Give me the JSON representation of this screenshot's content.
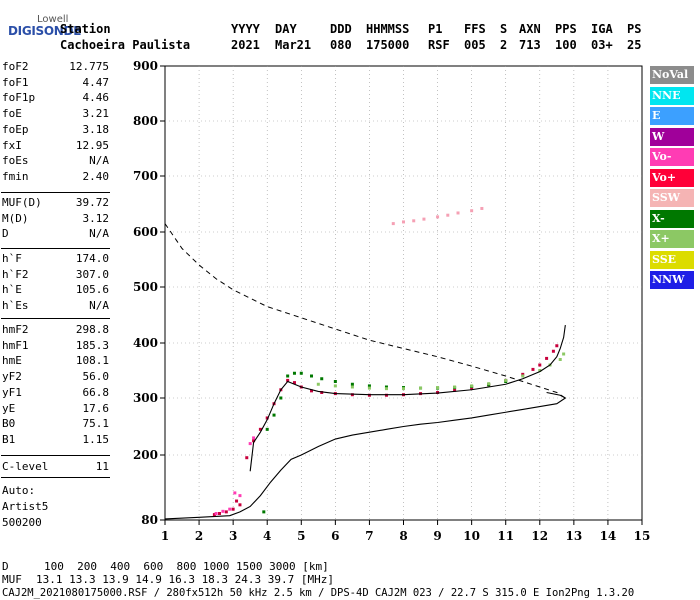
{
  "logo": {
    "top": "Lowell",
    "bottom": "DIGISONDE"
  },
  "header": {
    "row1": [
      "Station",
      "YYYY",
      "DAY",
      "DDD",
      "HHMMSS",
      "P1",
      "FFS",
      "S",
      "AXN",
      "PPS",
      "IGA",
      "PS"
    ],
    "row2": [
      "Cachoeira Paulista",
      "2021",
      "Mar21",
      "080",
      "175000",
      "RSF",
      "005",
      "2",
      "713",
      "100",
      "03+",
      "25"
    ]
  },
  "params_group1": [
    {
      "label": "foF2",
      "value": "12.775"
    },
    {
      "label": "foF1",
      "value": "4.47"
    },
    {
      "label": "foF1p",
      "value": "4.46"
    },
    {
      "label": "foE",
      "value": "3.21"
    },
    {
      "label": "foEp",
      "value": "3.18"
    },
    {
      "label": "fxI",
      "value": "12.95"
    },
    {
      "label": "foEs",
      "value": "N/A"
    },
    {
      "label": "fmin",
      "value": "2.40"
    }
  ],
  "params_group2": [
    {
      "label": "MUF(D)",
      "value": "39.72"
    },
    {
      "label": "M(D)",
      "value": "3.12"
    },
    {
      "label": "D",
      "value": "N/A"
    }
  ],
  "params_group3": [
    {
      "label": "h`F",
      "value": "174.0"
    },
    {
      "label": "h`F2",
      "value": "307.0"
    },
    {
      "label": "h`E",
      "value": "105.6"
    },
    {
      "label": "h`Es",
      "value": "N/A"
    }
  ],
  "params_group4": [
    {
      "label": "hmF2",
      "value": "298.8"
    },
    {
      "label": "hmF1",
      "value": "185.3"
    },
    {
      "label": "hmE",
      "value": "108.1"
    },
    {
      "label": "yF2",
      "value": "56.0"
    },
    {
      "label": "yF1",
      "value": "66.8"
    },
    {
      "label": "yE",
      "value": "17.6"
    },
    {
      "label": "B0",
      "value": "75.1"
    },
    {
      "label": "B1",
      "value": "1.15"
    }
  ],
  "params_group5": [
    {
      "label": "C-level",
      "value": "11"
    }
  ],
  "autoscale": {
    "line1": "Auto:",
    "line2": "Artist5",
    "line3": "500200"
  },
  "footer": {
    "d_label": "D",
    "d_values": "100  200  400  600  800 1000 1500 3000 [km]",
    "muf_label": "MUF",
    "muf_values": "13.1 13.3 13.9 14.9 16.3 18.3 24.3 39.7 [MHz]",
    "file_line": "CAJ2M_2021080175000.RSF / 280fx512h 50 kHz 2.5 km / DPS-4D CAJ2M 023 / 22.7 S 315.0 E Ion2Png 1.3.20"
  },
  "legend": [
    {
      "label": "NoVal",
      "color": "#8c8c8c"
    },
    {
      "label": "NNE",
      "color": "#00e6f0"
    },
    {
      "label": "E",
      "color": "#3ca0ff"
    },
    {
      "label": "W",
      "color": "#a0009a"
    },
    {
      "label": "Vo-",
      "color": "#ff3cb4"
    },
    {
      "label": "Vo+",
      "color": "#ff0038"
    },
    {
      "label": "SSW",
      "color": "#f5b4b4"
    },
    {
      "label": "X-",
      "color": "#007800"
    },
    {
      "label": "X+",
      "color": "#8cc864"
    },
    {
      "label": "SSE",
      "color": "#dcdc00"
    },
    {
      "label": "NNW",
      "color": "#1e1ee6"
    }
  ],
  "chart_data": {
    "type": "scatter",
    "xlim": [
      1,
      15
    ],
    "ylim": [
      80,
      900
    ],
    "x_ticks": [
      1,
      2,
      3,
      4,
      5,
      6,
      7,
      8,
      9,
      10,
      11,
      12,
      13,
      14,
      15
    ],
    "y_ticks": [
      80,
      200,
      300,
      400,
      500,
      600,
      700,
      800,
      900
    ],
    "grid": true,
    "series": [
      {
        "name": "Vo+",
        "color": "#c8003c",
        "x": [
          2.45,
          2.6,
          2.8,
          3.0,
          3.1,
          3.2,
          3.4,
          3.6,
          3.8,
          4.0,
          4.2,
          4.4,
          4.6,
          4.8,
          5.0,
          5.3,
          5.6,
          6.0,
          6.5,
          7.0,
          7.5,
          8.0,
          8.5,
          9.0,
          9.5,
          10.0,
          10.5,
          11.0,
          11.5,
          11.8,
          12.0,
          12.2,
          12.4,
          12.5
        ],
        "y": [
          90,
          92,
          95,
          100,
          115,
          108,
          195,
          225,
          245,
          265,
          290,
          315,
          332,
          328,
          320,
          313,
          310,
          308,
          306,
          305,
          305,
          306,
          308,
          310,
          314,
          318,
          324,
          332,
          343,
          352,
          360,
          372,
          385,
          395
        ]
      },
      {
        "name": "Vo-",
        "color": "#ff3cb4",
        "x": [
          2.5,
          2.7,
          2.9,
          3.05,
          3.2,
          3.5,
          3.6
        ],
        "y": [
          92,
          96,
          100,
          130,
          125,
          220,
          230
        ]
      },
      {
        "name": "X-",
        "color": "#007800",
        "x": [
          3.9,
          4.0,
          4.2,
          4.4,
          4.6,
          4.8,
          5.0,
          5.3,
          5.6,
          6.0,
          6.5,
          7.0,
          7.5,
          8.0,
          8.5,
          9.0,
          9.5,
          10.0,
          10.5,
          11.0
        ],
        "y": [
          95,
          245,
          270,
          300,
          340,
          345,
          345,
          340,
          335,
          330,
          325,
          322,
          320,
          319,
          318,
          318,
          319,
          321,
          324,
          330
        ]
      },
      {
        "name": "X+",
        "color": "#8cc864",
        "x": [
          5.5,
          6.0,
          6.5,
          7.0,
          7.5,
          8.0,
          8.5,
          9.0,
          9.5,
          10.0,
          10.5,
          11.0,
          11.5,
          12.0,
          12.3,
          12.6,
          12.7
        ],
        "y": [
          325,
          322,
          320,
          318,
          317,
          317,
          318,
          319,
          320,
          322,
          326,
          332,
          340,
          350,
          360,
          370,
          380
        ]
      },
      {
        "name": "SSW",
        "color": "#f5a0b4",
        "x": [
          7.7,
          8.0,
          8.3,
          8.6,
          9.0,
          9.3,
          9.6,
          10.0,
          10.3
        ],
        "y": [
          615,
          618,
          620,
          623,
          627,
          630,
          634,
          638,
          642
        ]
      }
    ],
    "profile": {
      "name": "electron density profile",
      "x": [
        1.0,
        2.0,
        2.9,
        3.2,
        3.5,
        3.8,
        4.1,
        4.4,
        4.7,
        5.0,
        5.5,
        6.0,
        6.5,
        7.0,
        7.5,
        8.0,
        8.5,
        9.0,
        9.5,
        10.0,
        10.5,
        11.0,
        11.5,
        12.0,
        12.5,
        12.75,
        12.6,
        12.2
      ],
      "y": [
        82,
        85,
        88,
        95,
        105,
        125,
        150,
        172,
        192,
        200,
        215,
        228,
        235,
        240,
        245,
        250,
        254,
        257,
        261,
        265,
        270,
        275,
        280,
        285,
        290,
        300,
        305,
        310
      ]
    },
    "virtual_trace": {
      "name": "black trace",
      "x": [
        3.5,
        3.6,
        3.8,
        4.0,
        4.2,
        4.4,
        4.6,
        4.8,
        5.0,
        5.5,
        6.0,
        7.0,
        8.0,
        9.0,
        10.0,
        11.0,
        11.5,
        12.0,
        12.3,
        12.5,
        12.6,
        12.7,
        12.75
      ],
      "y": [
        170,
        222,
        240,
        262,
        290,
        315,
        330,
        325,
        320,
        312,
        308,
        306,
        306,
        309,
        315,
        325,
        335,
        348,
        360,
        375,
        390,
        410,
        432
      ]
    },
    "dashed_curve": {
      "x": [
        1.0,
        1.5,
        2.0,
        2.5,
        3.0,
        4.0,
        5.0,
        6.0,
        7.0,
        8.0,
        9.0,
        10.0,
        11.0,
        12.0,
        12.5,
        12.75
      ],
      "y": [
        615,
        570,
        540,
        515,
        495,
        465,
        445,
        425,
        405,
        390,
        375,
        358,
        340,
        320,
        310,
        300
      ]
    }
  }
}
